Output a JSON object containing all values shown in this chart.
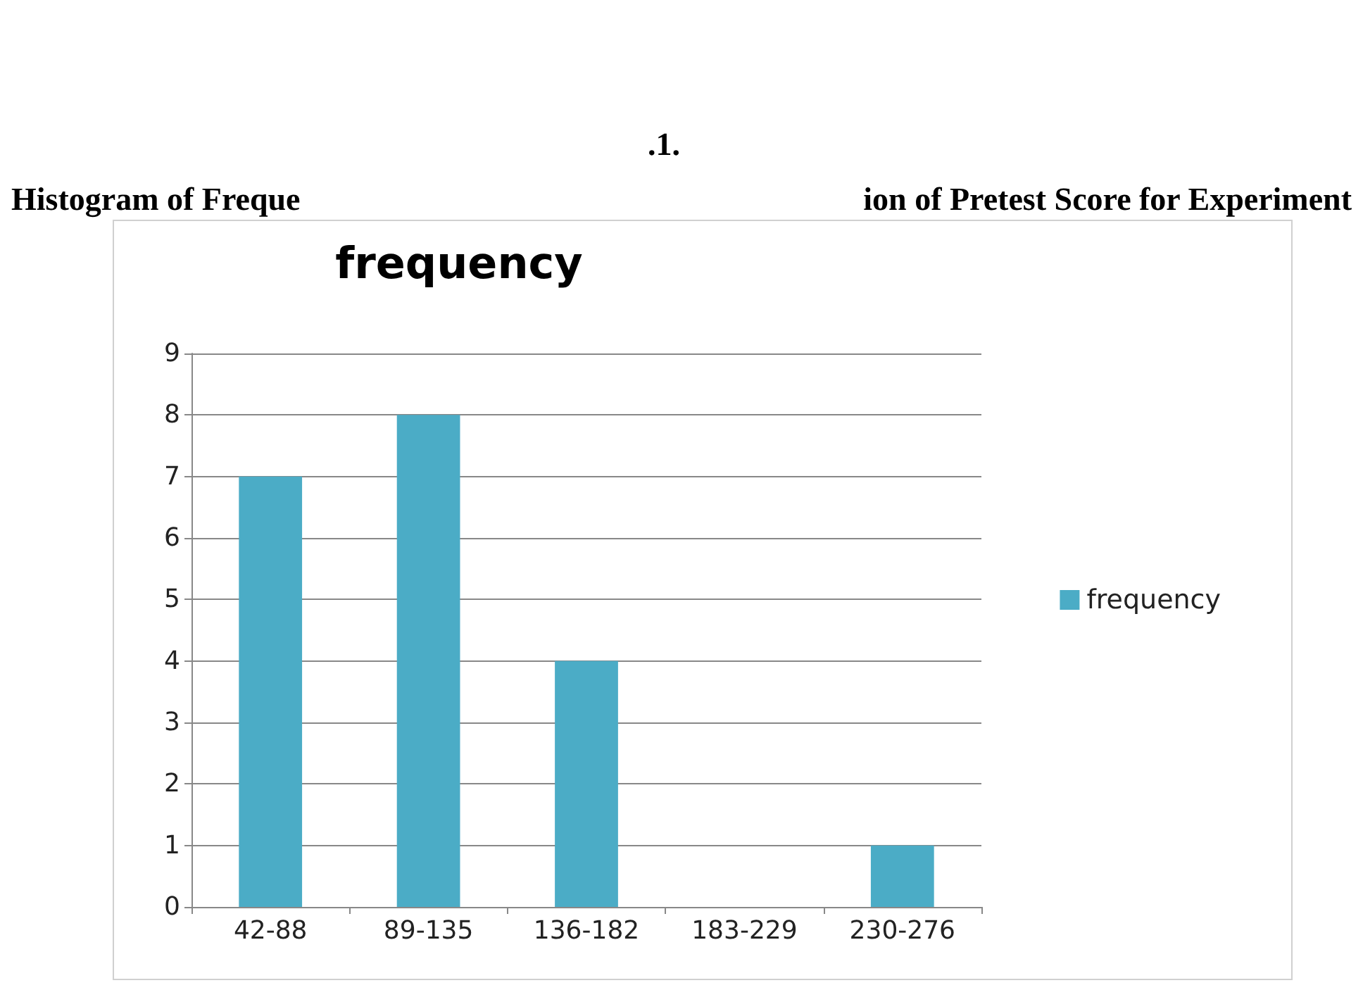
{
  "chart_data": {
    "type": "bar",
    "title": "frequency",
    "annotations": [
      ".1.",
      "Histogram of Freque",
      "ion of Pretest Score for Experiment"
    ],
    "categories": [
      "42-88",
      "89-135",
      "136-182",
      "183-229",
      "230-276"
    ],
    "series": [
      {
        "name": "frequency",
        "color": "#4bacc6",
        "values": [
          7,
          8,
          4,
          0,
          1
        ]
      }
    ],
    "ylim": [
      0,
      9
    ],
    "yticks": [
      0,
      1,
      2,
      3,
      4,
      5,
      6,
      7,
      8,
      9
    ],
    "grid": "y",
    "legend": "right"
  }
}
